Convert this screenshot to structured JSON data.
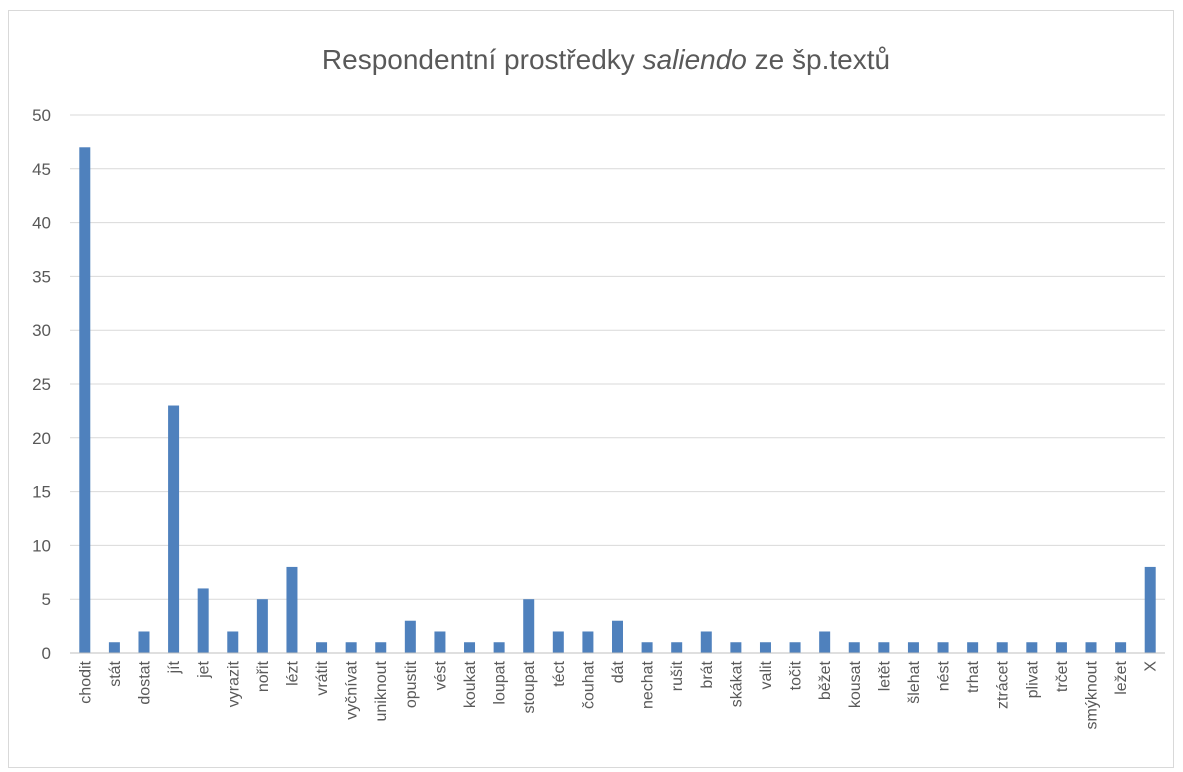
{
  "chart_data": {
    "type": "bar",
    "title": {
      "prefix": "Respondentní prostředky ",
      "emphasis": "saliendo",
      "suffix": " ze šp.textů"
    },
    "xlabel": "",
    "ylabel": "",
    "ylim": [
      0,
      50
    ],
    "yticks": [
      0,
      5,
      10,
      15,
      20,
      25,
      30,
      35,
      40,
      45,
      50
    ],
    "grid": true,
    "legend": "none",
    "bar_color": "#4f81bd",
    "categories": [
      "chodit",
      "stát",
      "dostat",
      "jít",
      "jet",
      "vyrazit",
      "nořit",
      "lézt",
      "vrátit",
      "vyčnívat",
      "uniknout",
      "opustit",
      "vést",
      "koukat",
      "loupat",
      "stoupat",
      "téct",
      "čouhat",
      "dát",
      "nechat",
      "rušit",
      "brát",
      "skákat",
      "valit",
      "točit",
      "běžet",
      "kousat",
      "letět",
      "šlehat",
      "nést",
      "trhat",
      "ztrácet",
      "plivat",
      "trčet",
      "smýknout",
      "ležet",
      "X"
    ],
    "values": [
      47,
      1,
      2,
      23,
      6,
      2,
      5,
      8,
      1,
      1,
      1,
      3,
      2,
      1,
      1,
      5,
      2,
      2,
      3,
      1,
      1,
      2,
      1,
      1,
      1,
      2,
      1,
      1,
      1,
      1,
      1,
      1,
      1,
      1,
      1,
      1,
      8
    ]
  }
}
